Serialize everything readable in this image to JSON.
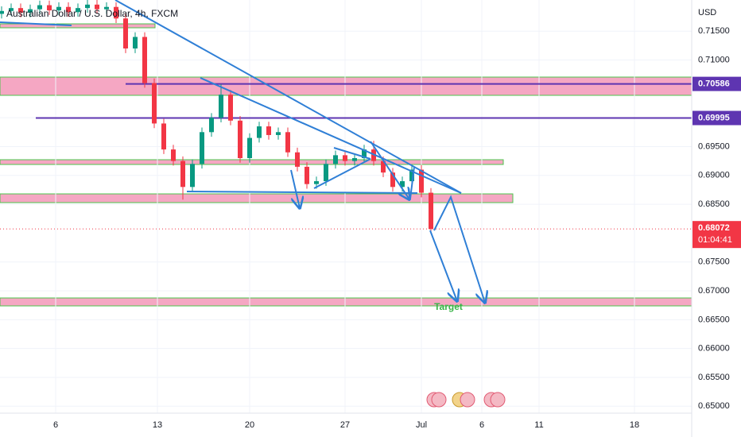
{
  "chart_data": {
    "type": "candlestick",
    "title": "Australian Dollar / U.S. Dollar, 4h, FXCM",
    "currency": "USD",
    "x": [
      0,
      3,
      6,
      9,
      12,
      15,
      18,
      21,
      24,
      27,
      30,
      33,
      36,
      39,
      42,
      45,
      48,
      51,
      54,
      57,
      60,
      63,
      66,
      69,
      72,
      75,
      78,
      81,
      84,
      87,
      90,
      93,
      96,
      99,
      102,
      105,
      108,
      111,
      114,
      117,
      120,
      123,
      126,
      129,
      132,
      135
    ],
    "open": [
      0.718,
      0.7185,
      0.719,
      0.7182,
      0.7188,
      0.7195,
      0.7186,
      0.7192,
      0.7183,
      0.719,
      0.7196,
      0.7188,
      0.7192,
      0.7172,
      0.712,
      0.714,
      0.706,
      0.699,
      0.6945,
      0.6925,
      0.688,
      0.692,
      0.6975,
      0.7,
      0.704,
      0.6995,
      0.693,
      0.6965,
      0.6985,
      0.697,
      0.6975,
      0.694,
      0.6915,
      0.6885,
      0.689,
      0.692,
      0.6935,
      0.6925,
      0.693,
      0.6945,
      0.6925,
      0.6905,
      0.688,
      0.689,
      0.691,
      0.687
    ],
    "high": [
      0.7193,
      0.7198,
      0.7198,
      0.7196,
      0.7203,
      0.7203,
      0.72,
      0.72,
      0.7198,
      0.7204,
      0.7204,
      0.72,
      0.72,
      0.718,
      0.7148,
      0.7148,
      0.7068,
      0.6998,
      0.6953,
      0.6933,
      0.6928,
      0.6983,
      0.7008,
      0.7058,
      0.7048,
      0.7003,
      0.6973,
      0.6993,
      0.6993,
      0.6983,
      0.6983,
      0.6948,
      0.6923,
      0.6898,
      0.6928,
      0.6943,
      0.6943,
      0.6938,
      0.6953,
      0.696,
      0.6933,
      0.6913,
      0.6898,
      0.6918,
      0.6918,
      0.6878
    ],
    "low": [
      0.7172,
      0.7177,
      0.7174,
      0.7174,
      0.718,
      0.7178,
      0.7178,
      0.7175,
      0.7175,
      0.7182,
      0.718,
      0.718,
      0.7164,
      0.7112,
      0.7112,
      0.7052,
      0.6982,
      0.6937,
      0.6917,
      0.6858,
      0.6872,
      0.6912,
      0.6967,
      0.6992,
      0.6987,
      0.6922,
      0.6922,
      0.6957,
      0.6962,
      0.6962,
      0.6932,
      0.6907,
      0.6877,
      0.6877,
      0.6882,
      0.6912,
      0.6917,
      0.6917,
      0.6922,
      0.6917,
      0.6897,
      0.6872,
      0.6872,
      0.6882,
      0.6862,
      0.68
    ],
    "close": [
      0.7185,
      0.719,
      0.7182,
      0.7188,
      0.7195,
      0.7186,
      0.7192,
      0.7183,
      0.719,
      0.7196,
      0.7188,
      0.7192,
      0.7172,
      0.712,
      0.714,
      0.706,
      0.699,
      0.6945,
      0.6925,
      0.688,
      0.692,
      0.6975,
      0.7,
      0.704,
      0.6995,
      0.693,
      0.6965,
      0.6985,
      0.697,
      0.6975,
      0.694,
      0.6915,
      0.6885,
      0.689,
      0.692,
      0.6935,
      0.6925,
      0.693,
      0.6945,
      0.6925,
      0.6905,
      0.688,
      0.689,
      0.691,
      0.687,
      0.68072
    ],
    "up_color": "#089981",
    "down_color": "#f23645",
    "xlim": [
      -0.5,
      217
    ],
    "xticks": [
      {
        "value": 17,
        "label": "6"
      },
      {
        "value": 49,
        "label": "13"
      },
      {
        "value": 78,
        "label": "20"
      },
      {
        "value": 108,
        "label": "27"
      },
      {
        "value": 132,
        "label": "Jul"
      },
      {
        "value": 151,
        "label": "6"
      },
      {
        "value": 169,
        "label": "11"
      },
      {
        "value": 199,
        "label": "18"
      }
    ],
    "ylim": [
      0.6488,
      0.7204
    ],
    "yticks": [
      {
        "value": 0.715,
        "label": "0.71500"
      },
      {
        "value": 0.71,
        "label": "0.71000"
      },
      {
        "value": 0.7,
        "label": "0.70000"
      },
      {
        "value": 0.695,
        "label": "0.69500"
      },
      {
        "value": 0.69,
        "label": "0.69000"
      },
      {
        "value": 0.685,
        "label": "0.68500"
      },
      {
        "value": 0.675,
        "label": "0.67500"
      },
      {
        "value": 0.67,
        "label": "0.67000"
      },
      {
        "value": 0.665,
        "label": "0.66500"
      },
      {
        "value": 0.66,
        "label": "0.66000"
      },
      {
        "value": 0.655,
        "label": "0.65500"
      },
      {
        "value": 0.65,
        "label": "0.65000"
      }
    ],
    "grid": true,
    "levels": [
      0.70586,
      0.69995
    ],
    "level_color": "#5e35b1",
    "last_price": 0.68072,
    "countdown": "01:04:41",
    "annotation": "Target"
  }
}
